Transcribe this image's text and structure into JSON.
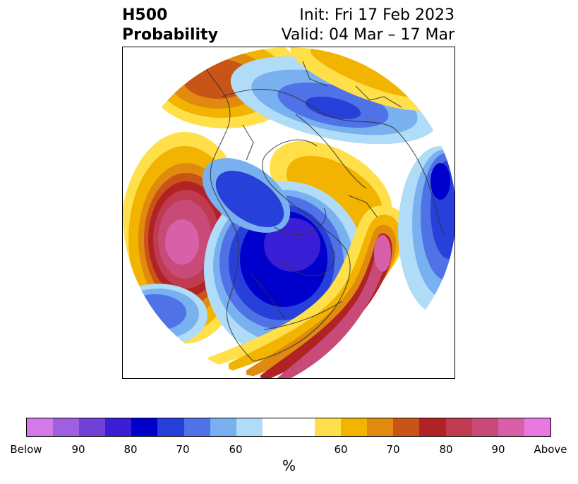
{
  "title": {
    "left_line1": "H500",
    "left_line2": "Probability",
    "right_line1": "Init: Fri 17 Feb 2023",
    "right_line2": "Valid: 04 Mar – 17 Mar"
  },
  "map": {
    "projection": "north-polar-stereographic",
    "field": "500 hPa height anomaly probability"
  },
  "colorbar": {
    "unit": "%",
    "colors": [
      "#d47ae8",
      "#a05fe0",
      "#7040d8",
      "#3a1ed6",
      "#0000cc",
      "#2840da",
      "#4f72e6",
      "#78b0f0",
      "#b0dcf8",
      "#ffffff",
      "#ffe04a",
      "#f2b400",
      "#e08a10",
      "#c85418",
      "#b02224",
      "#c03a50",
      "#c84a78",
      "#d860a8",
      "#e878e0"
    ],
    "tick_labels": [
      "Below",
      "90",
      "80",
      "70",
      "60",
      "60",
      "70",
      "80",
      "90",
      "Above"
    ]
  }
}
